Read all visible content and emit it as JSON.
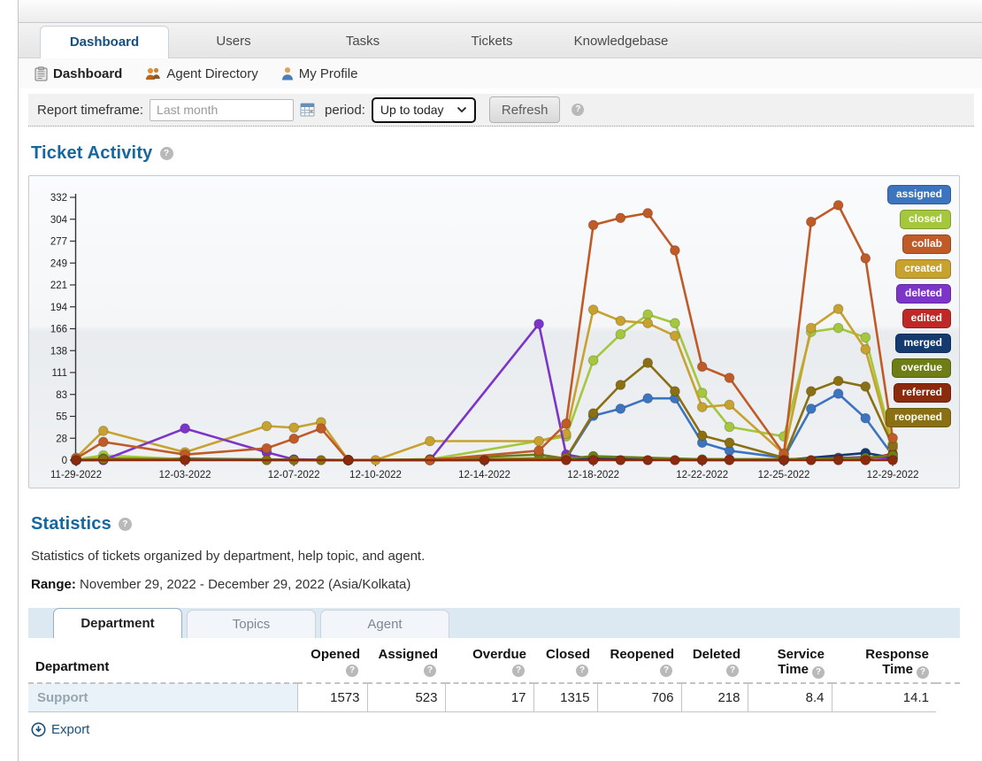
{
  "nav": {
    "tabs": [
      {
        "label": "Dashboard",
        "active": true
      },
      {
        "label": "Users",
        "active": false
      },
      {
        "label": "Tasks",
        "active": false
      },
      {
        "label": "Tickets",
        "active": false
      },
      {
        "label": "Knowledgebase",
        "active": false
      }
    ]
  },
  "subnav": {
    "items": [
      {
        "label": "Dashboard",
        "icon": "clipboard-icon"
      },
      {
        "label": "Agent Directory",
        "icon": "agents-icon"
      },
      {
        "label": "My Profile",
        "icon": "person-icon"
      }
    ]
  },
  "filter": {
    "label": "Report timeframe:",
    "input_placeholder": "Last month",
    "calendar_icon": "calendar-icon",
    "period_label": "period:",
    "period_value": "Up to today",
    "refresh_label": "Refresh"
  },
  "ticket_activity": {
    "title": "Ticket Activity"
  },
  "chart_data": {
    "type": "line",
    "title": "Ticket Activity",
    "x_is_dates": true,
    "x_start": "11-29-2022",
    "x_days": 31,
    "x_tick_days": [
      0,
      4,
      8,
      11,
      15,
      19,
      23,
      26,
      30
    ],
    "x_tick_labels": [
      "11-29-2022",
      "12-03-2022",
      "12-07-2022",
      "12-10-2022",
      "12-14-2022",
      "12-18-2022",
      "12-22-2022",
      "12-25-2022",
      "12-29-2022"
    ],
    "y_ticks": [
      0,
      28,
      55,
      83,
      111,
      138,
      166,
      194,
      221,
      249,
      277,
      304,
      332
    ],
    "ylim": [
      0,
      332
    ],
    "legend_position": "top-right",
    "series": [
      {
        "name": "assigned",
        "color": "#3d74c0",
        "points": [
          [
            0,
            0
          ],
          [
            1,
            1
          ],
          [
            4,
            2
          ],
          [
            10,
            0
          ],
          [
            13,
            0
          ],
          [
            18,
            2
          ],
          [
            19,
            56
          ],
          [
            20,
            65
          ],
          [
            21,
            78
          ],
          [
            22,
            78
          ],
          [
            23,
            22
          ],
          [
            24,
            12
          ],
          [
            26,
            3
          ],
          [
            27,
            65
          ],
          [
            28,
            84
          ],
          [
            29,
            53
          ],
          [
            30,
            6
          ]
        ]
      },
      {
        "name": "closed",
        "color": "#a4c73c",
        "points": [
          [
            0,
            1
          ],
          [
            1,
            6
          ],
          [
            4,
            1
          ],
          [
            10,
            0
          ],
          [
            13,
            1
          ],
          [
            18,
            30
          ],
          [
            19,
            126
          ],
          [
            20,
            159
          ],
          [
            21,
            184
          ],
          [
            22,
            173
          ],
          [
            23,
            85
          ],
          [
            24,
            42
          ],
          [
            26,
            30
          ],
          [
            27,
            162
          ],
          [
            28,
            167
          ],
          [
            29,
            155
          ],
          [
            30,
            20
          ]
        ]
      },
      {
        "name": "collab",
        "color": "#c05b28",
        "points": [
          [
            0,
            2
          ],
          [
            1,
            23
          ],
          [
            4,
            7
          ],
          [
            7,
            15
          ],
          [
            8,
            27
          ],
          [
            9,
            40
          ],
          [
            10,
            0
          ],
          [
            13,
            0
          ],
          [
            17,
            12
          ],
          [
            18,
            46
          ],
          [
            19,
            297
          ],
          [
            20,
            306
          ],
          [
            21,
            312
          ],
          [
            22,
            265
          ],
          [
            23,
            118
          ],
          [
            24,
            104
          ],
          [
            26,
            8
          ],
          [
            27,
            301
          ],
          [
            28,
            322
          ],
          [
            29,
            255
          ],
          [
            30,
            28
          ]
        ]
      },
      {
        "name": "created",
        "color": "#c8a22f",
        "points": [
          [
            0,
            3
          ],
          [
            1,
            37
          ],
          [
            4,
            10
          ],
          [
            7,
            43
          ],
          [
            8,
            41
          ],
          [
            9,
            48
          ],
          [
            10,
            0
          ],
          [
            11,
            0
          ],
          [
            13,
            24
          ],
          [
            17,
            24
          ],
          [
            18,
            33
          ],
          [
            19,
            190
          ],
          [
            20,
            176
          ],
          [
            21,
            173
          ],
          [
            22,
            157
          ],
          [
            23,
            67
          ],
          [
            24,
            70
          ],
          [
            26,
            8
          ],
          [
            27,
            167
          ],
          [
            28,
            191
          ],
          [
            29,
            140
          ],
          [
            30,
            15
          ]
        ]
      },
      {
        "name": "deleted",
        "color": "#7d35c9",
        "points": [
          [
            0,
            0
          ],
          [
            1,
            0
          ],
          [
            4,
            40
          ],
          [
            7,
            10
          ],
          [
            8,
            1
          ],
          [
            10,
            0
          ],
          [
            13,
            0
          ],
          [
            17,
            172
          ],
          [
            18,
            7
          ],
          [
            19,
            1
          ],
          [
            26,
            0
          ],
          [
            29,
            4
          ],
          [
            30,
            2
          ]
        ]
      },
      {
        "name": "edited",
        "color": "#c02828",
        "points": [
          [
            0,
            0
          ],
          [
            1,
            1
          ],
          [
            10,
            0
          ],
          [
            19,
            2
          ],
          [
            24,
            1
          ],
          [
            26,
            1
          ],
          [
            28,
            3
          ],
          [
            29,
            1
          ],
          [
            30,
            8
          ]
        ]
      },
      {
        "name": "merged",
        "color": "#143a70",
        "points": [
          [
            0,
            0
          ],
          [
            4,
            1
          ],
          [
            10,
            0
          ],
          [
            15,
            0
          ],
          [
            19,
            1
          ],
          [
            23,
            0
          ],
          [
            26,
            0
          ],
          [
            29,
            9
          ],
          [
            30,
            3
          ]
        ]
      },
      {
        "name": "overdue",
        "color": "#6e7d15",
        "points": [
          [
            0,
            0
          ],
          [
            1,
            2
          ],
          [
            4,
            1
          ],
          [
            10,
            0
          ],
          [
            13,
            1
          ],
          [
            17,
            7
          ],
          [
            18,
            2
          ],
          [
            19,
            5
          ],
          [
            23,
            1
          ],
          [
            26,
            1
          ],
          [
            29,
            3
          ],
          [
            30,
            6
          ]
        ]
      },
      {
        "name": "referred",
        "color": "#8b2a0d",
        "points": [
          [
            0,
            0
          ],
          [
            4,
            0
          ],
          [
            10,
            0
          ],
          [
            15,
            0
          ],
          [
            18,
            0
          ],
          [
            19,
            0
          ],
          [
            20,
            0
          ],
          [
            21,
            0
          ],
          [
            22,
            0
          ],
          [
            23,
            0
          ],
          [
            24,
            0
          ],
          [
            26,
            0
          ],
          [
            27,
            0
          ],
          [
            28,
            0
          ],
          [
            29,
            0
          ],
          [
            30,
            0
          ]
        ]
      },
      {
        "name": "reopened",
        "color": "#8a7012",
        "points": [
          [
            0,
            0
          ],
          [
            1,
            1
          ],
          [
            4,
            1
          ],
          [
            7,
            0
          ],
          [
            8,
            0
          ],
          [
            9,
            0
          ],
          [
            10,
            0
          ],
          [
            13,
            0
          ],
          [
            18,
            3
          ],
          [
            19,
            59
          ],
          [
            20,
            95
          ],
          [
            21,
            123
          ],
          [
            22,
            87
          ],
          [
            23,
            31
          ],
          [
            24,
            22
          ],
          [
            26,
            3
          ],
          [
            27,
            87
          ],
          [
            28,
            100
          ],
          [
            29,
            93
          ],
          [
            30,
            18
          ]
        ]
      }
    ]
  },
  "statistics": {
    "title": "Statistics",
    "description": "Statistics of tickets organized by department, help topic, and agent.",
    "range_label": "Range:",
    "range_value": "November 29, 2022 - December 29, 2022 (Asia/Kolkata)",
    "tabs": [
      {
        "label": "Department",
        "active": true
      },
      {
        "label": "Topics",
        "active": false
      },
      {
        "label": "Agent",
        "active": false
      }
    ],
    "table": {
      "columns": [
        {
          "label": "Department",
          "help": "none"
        },
        {
          "label": "Opened",
          "help": "below"
        },
        {
          "label": "Assigned",
          "help": "below"
        },
        {
          "label": "Overdue",
          "help": "below"
        },
        {
          "label": "Closed",
          "help": "below"
        },
        {
          "label": "Reopened",
          "help": "below"
        },
        {
          "label": "Deleted",
          "help": "below"
        },
        {
          "label": "Service Time",
          "lines": [
            "Service",
            "Time"
          ],
          "help": "inline"
        },
        {
          "label": "Response Time",
          "lines": [
            "Response",
            "Time"
          ],
          "help": "inline"
        }
      ],
      "rows": [
        [
          "Support",
          "1573",
          "523",
          "17",
          "1315",
          "706",
          "218",
          "8.4",
          "14.1"
        ]
      ]
    }
  },
  "export_link": {
    "label": "Export"
  }
}
